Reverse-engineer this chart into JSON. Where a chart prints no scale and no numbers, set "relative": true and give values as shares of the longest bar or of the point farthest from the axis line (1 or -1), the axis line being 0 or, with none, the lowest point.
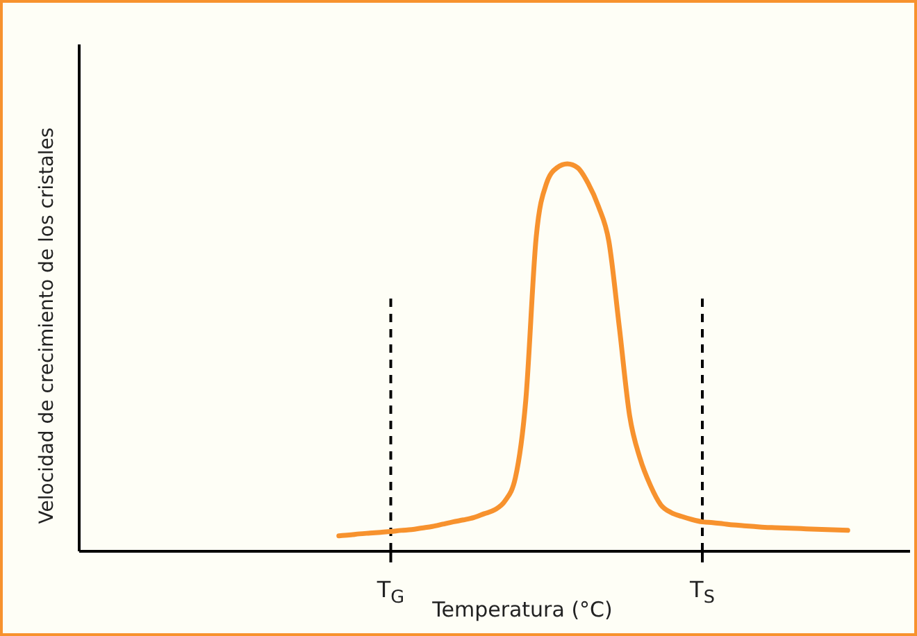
{
  "chart_data": {
    "type": "line",
    "relative": true,
    "xlabel": "Temperatura (°C)",
    "ylabel": "Velocidad de crecimiento de los cristales",
    "categories": [
      null,
      null,
      null,
      null,
      null,
      null,
      null,
      null,
      null,
      null,
      null,
      null,
      null,
      null,
      null,
      null,
      null,
      null,
      null,
      null,
      null,
      null,
      null,
      null,
      null,
      null,
      null,
      null,
      null,
      null,
      "T$_{G}$",
      null,
      null,
      null,
      null,
      null,
      null,
      null,
      null,
      null,
      null,
      null,
      null,
      null,
      null,
      null,
      null,
      null,
      null,
      null,
      null,
      null,
      null,
      null,
      null,
      null,
      null,
      null,
      null,
      null,
      "T$_{S}$",
      null,
      null,
      null,
      null,
      null,
      null,
      null,
      null,
      null,
      null,
      null,
      null,
      null,
      null,
      null,
      null,
      null,
      null,
      null,
      null
    ],
    "series": [
      {
        "color": "#f7922e",
        "values": [
          null,
          null,
          null,
          null,
          null,
          null,
          null,
          null,
          null,
          null,
          null,
          null,
          null,
          null,
          null,
          null,
          null,
          null,
          null,
          null,
          null,
          null,
          null,
          null,
          null,
          0.04,
          0.042,
          0.045,
          0.047,
          0.049,
          0.051,
          0.054,
          0.056,
          0.06,
          0.064,
          0.07,
          0.076,
          0.081,
          0.087,
          0.097,
          0.107,
          0.13,
          0.19,
          0.39,
          0.81,
          0.95,
          0.99,
          1,
          0.99,
          0.95,
          0.89,
          0.8,
          0.58,
          0.35,
          0.24,
          0.17,
          0.12,
          0.1,
          0.09,
          0.082,
          0.076,
          0.074,
          0.071,
          0.068,
          0.066,
          0.064,
          0.062,
          0.061,
          0.06,
          0.059,
          0.058,
          0.057,
          0.056,
          0.055,
          0.054,
          null,
          null,
          null,
          null,
          null,
          null
        ]
      }
    ],
    "ref_lines": [
      {
        "axis": "x",
        "value": "T$_{G}$",
        "line_style": "dashed",
        "color": "#000000"
      },
      {
        "axis": "x",
        "value": "T$_{S}$",
        "line_style": "dashed",
        "color": "#000000"
      }
    ],
    "line_style": "solid",
    "grid": false
  }
}
